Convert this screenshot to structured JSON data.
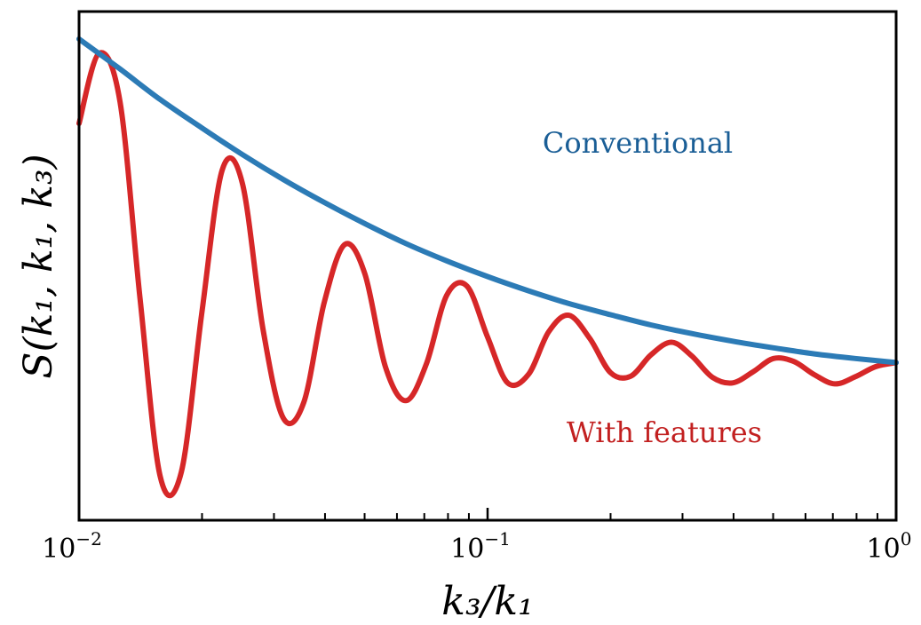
{
  "chart_data": {
    "type": "line",
    "xscale": "log",
    "xlim": [
      0.01,
      1
    ],
    "yticks_shown": false,
    "xlabel": "k₃/k₁",
    "ylabel": "S(k₁, k₁, k₃)",
    "xticks": [
      {
        "value": 0.01,
        "base": "10",
        "exp": "−2"
      },
      {
        "value": 0.1,
        "base": "10",
        "exp": "−1"
      },
      {
        "value": 1,
        "base": "10",
        "exp": "0"
      }
    ],
    "series": [
      {
        "name": "Conventional",
        "color": "#2c7bb6",
        "x": [
          0.01,
          0.0126,
          0.0158,
          0.02,
          0.0251,
          0.0316,
          0.0398,
          0.0501,
          0.0631,
          0.0794,
          0.1,
          0.126,
          0.158,
          0.2,
          0.251,
          0.316,
          0.398,
          0.501,
          0.631,
          0.794,
          1.0
        ],
        "y": [
          0.946,
          0.887,
          0.827,
          0.771,
          0.719,
          0.67,
          0.625,
          0.583,
          0.544,
          0.51,
          0.479,
          0.451,
          0.426,
          0.404,
          0.384,
          0.367,
          0.352,
          0.339,
          0.327,
          0.318,
          0.31
        ]
      },
      {
        "name": "With features",
        "color": "#d62728",
        "x": [
          0.01,
          0.0112,
          0.0126,
          0.0141,
          0.0158,
          0.0178,
          0.02,
          0.0224,
          0.0251,
          0.0282,
          0.0316,
          0.0355,
          0.0398,
          0.0447,
          0.0501,
          0.0562,
          0.0631,
          0.0708,
          0.0794,
          0.0891,
          0.1,
          0.112,
          0.126,
          0.141,
          0.158,
          0.178,
          0.2,
          0.224,
          0.251,
          0.282,
          0.316,
          0.355,
          0.398,
          0.447,
          0.501,
          0.562,
          0.631,
          0.708,
          0.794,
          0.891,
          1.0
        ],
        "y": [
          0.78,
          0.918,
          0.822,
          0.437,
          0.086,
          0.095,
          0.411,
          0.688,
          0.663,
          0.376,
          0.201,
          0.232,
          0.427,
          0.542,
          0.484,
          0.302,
          0.235,
          0.307,
          0.442,
          0.46,
          0.36,
          0.27,
          0.287,
          0.37,
          0.403,
          0.357,
          0.29,
          0.283,
          0.325,
          0.35,
          0.323,
          0.281,
          0.27,
          0.292,
          0.318,
          0.312,
          0.286,
          0.268,
          0.282,
          0.302,
          0.31
        ]
      }
    ],
    "annotations": [
      {
        "text": "Conventional",
        "color": "#1a5e96"
      },
      {
        "text": "With features",
        "color": "#c22020"
      }
    ]
  }
}
